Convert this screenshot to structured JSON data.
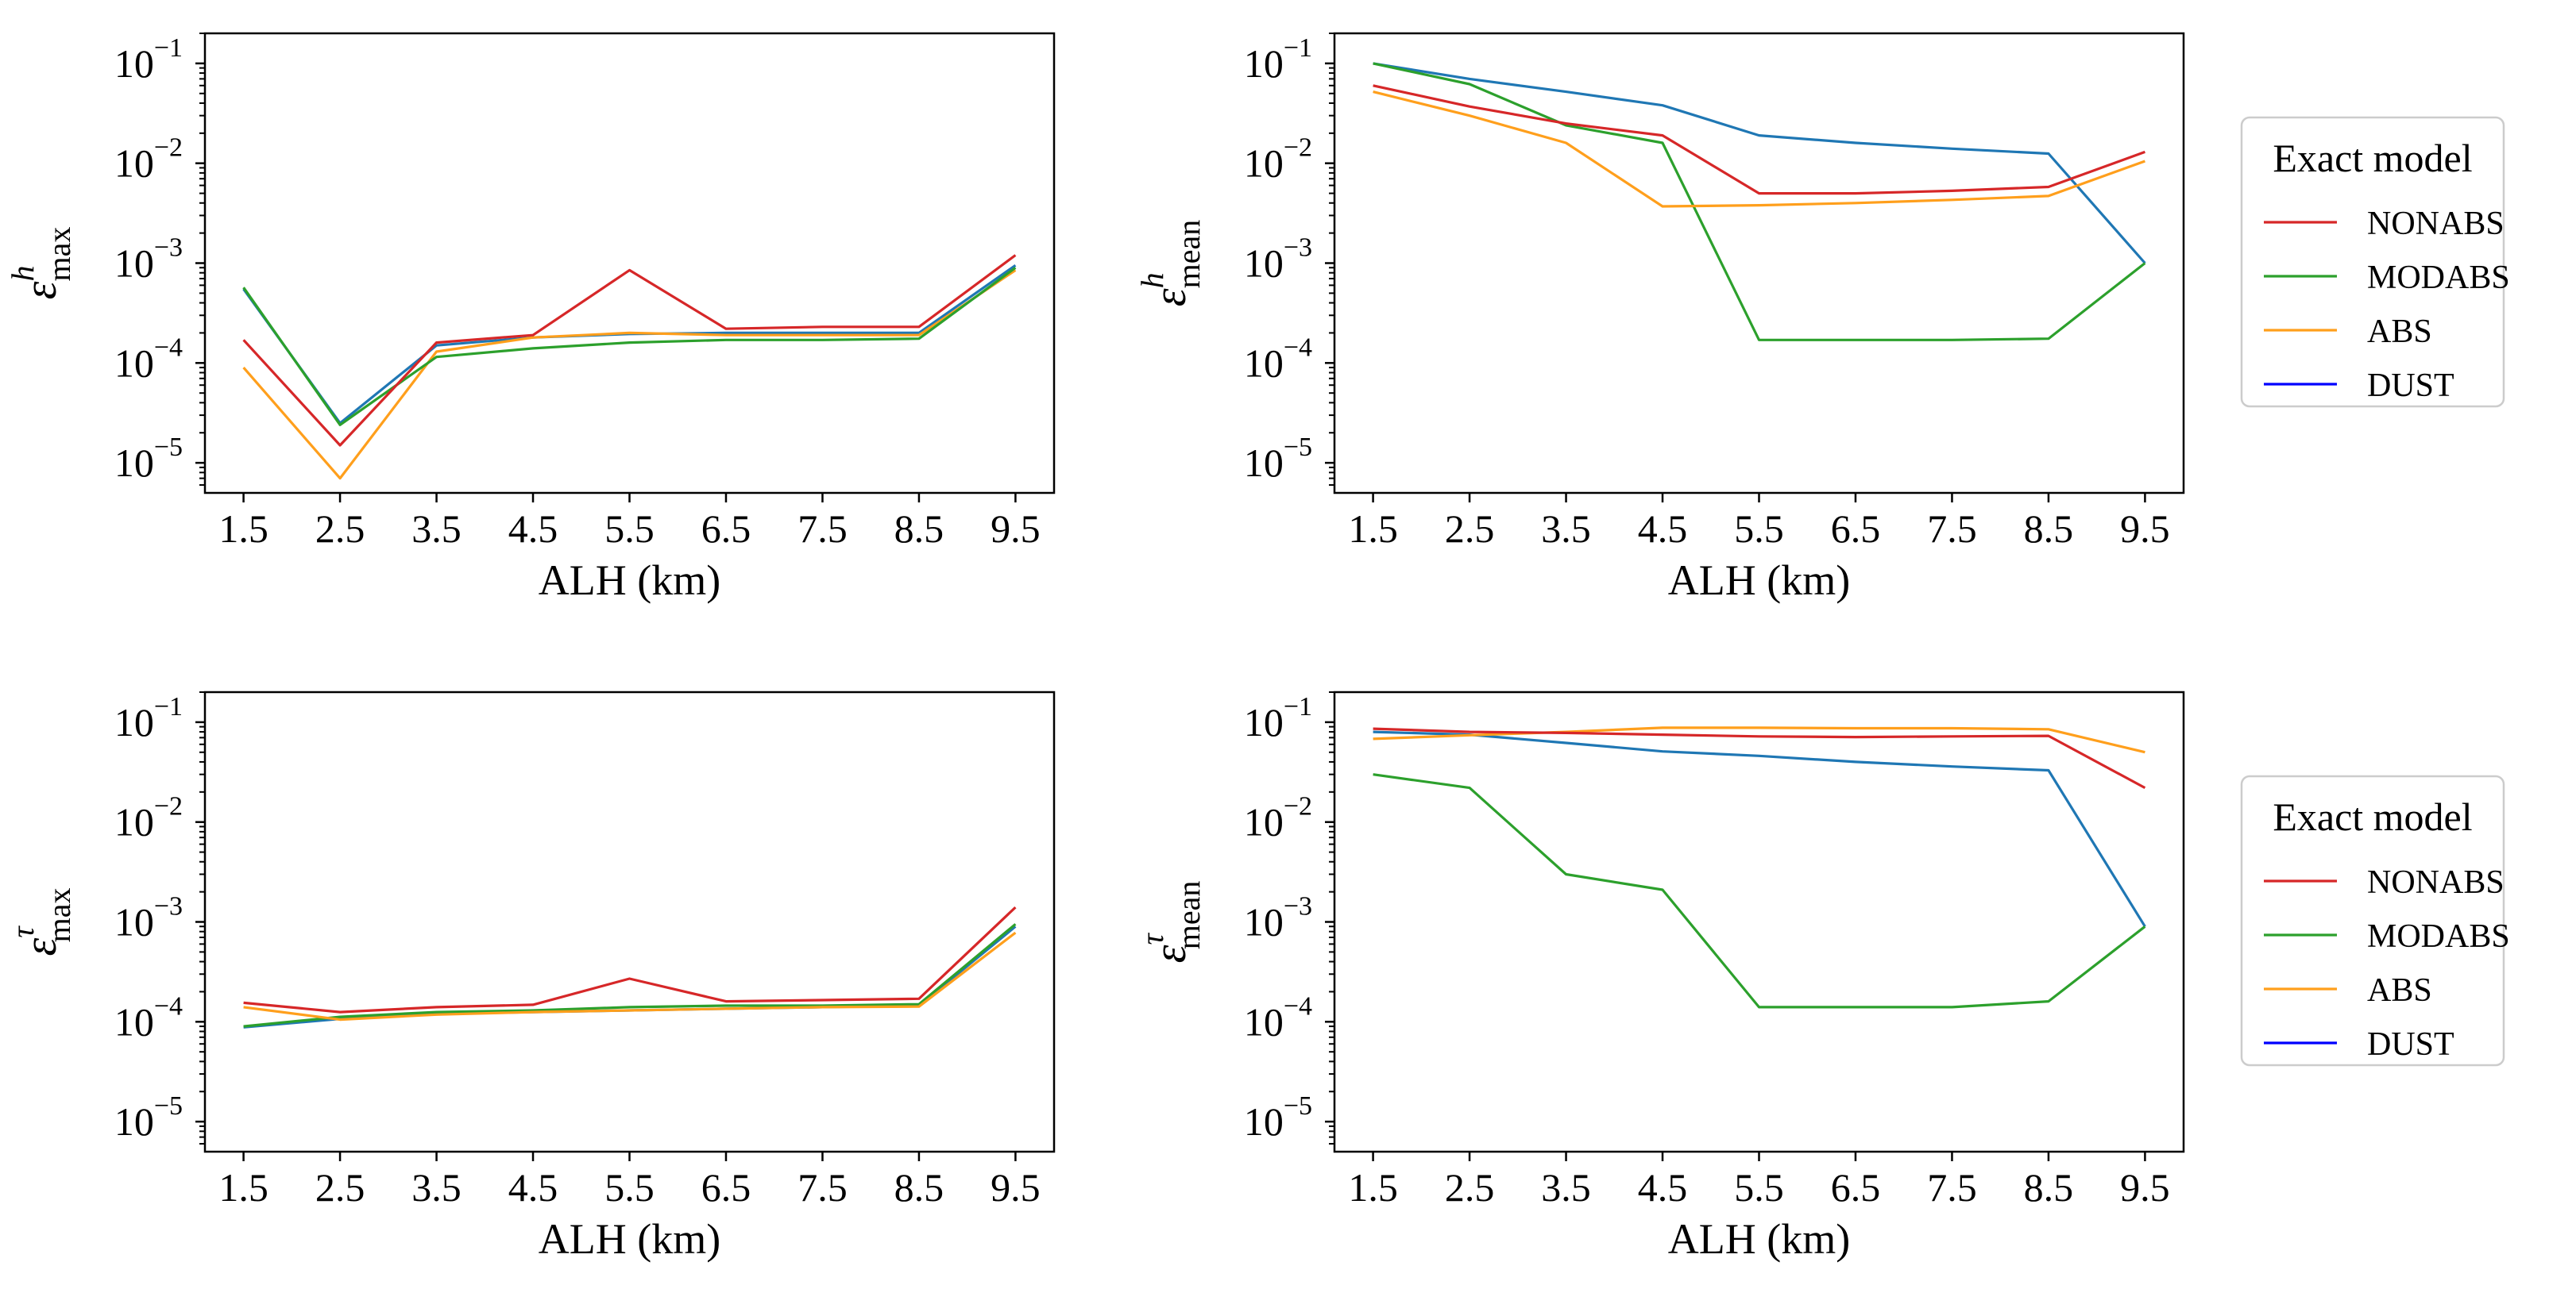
{
  "figure": {
    "colors": {
      "NONABS": "#d62728",
      "MODABS": "#2ca02c",
      "ABS": "#ff9f1c",
      "DUST": "#1f77b4",
      "DUST_legend": "#0000ff"
    }
  },
  "legends": [
    {
      "title": "Exact model",
      "entries": [
        "NONABS",
        "MODABS",
        "ABS",
        "DUST"
      ],
      "placement": "right of top-right panel"
    },
    {
      "title": "Exact model",
      "entries": [
        "NONABS",
        "MODABS",
        "ABS",
        "DUST"
      ],
      "placement": "right of bottom-right panel"
    }
  ],
  "chart_data": [
    {
      "type": "line",
      "panel": "top-left",
      "xlabel": "ALH (km)",
      "ylabel": {
        "base": "ε",
        "sup": "h",
        "sub": "max"
      },
      "x": [
        1.5,
        2.5,
        3.5,
        4.5,
        5.5,
        6.5,
        7.5,
        8.5,
        9.5
      ],
      "xticks": [
        "1.5",
        "2.5",
        "3.5",
        "4.5",
        "5.5",
        "6.5",
        "7.5",
        "8.5",
        "9.5"
      ],
      "yscale": "log",
      "ylim": [
        5e-06,
        0.2
      ],
      "yticks": [
        {
          "base": "10",
          "exp": "−5",
          "v": 1e-05
        },
        {
          "base": "10",
          "exp": "−4",
          "v": 0.0001
        },
        {
          "base": "10",
          "exp": "−3",
          "v": 0.001
        },
        {
          "base": "10",
          "exp": "−2",
          "v": 0.01
        },
        {
          "base": "10",
          "exp": "−1",
          "v": 0.1
        }
      ],
      "series": [
        {
          "name": "DUST",
          "values": [
            0.00055,
            2.5e-05,
            0.00015,
            0.00018,
            0.000195,
            0.0002,
            0.0002,
            0.0002,
            0.00095
          ]
        },
        {
          "name": "ABS",
          "values": [
            9e-05,
            7e-06,
            0.00013,
            0.00018,
            0.0002,
            0.00019,
            0.00019,
            0.00019,
            0.00085
          ]
        },
        {
          "name": "MODABS",
          "values": [
            0.00057,
            2.4e-05,
            0.000115,
            0.00014,
            0.00016,
            0.00017,
            0.00017,
            0.000175,
            0.0009
          ]
        },
        {
          "name": "NONABS",
          "values": [
            0.00017,
            1.5e-05,
            0.00016,
            0.00019,
            0.00085,
            0.00022,
            0.00023,
            0.00023,
            0.0012
          ]
        }
      ]
    },
    {
      "type": "line",
      "panel": "top-right",
      "xlabel": "ALH (km)",
      "ylabel": {
        "base": "ε",
        "sup": "h",
        "sub": "mean"
      },
      "x": [
        1.5,
        2.5,
        3.5,
        4.5,
        5.5,
        6.5,
        7.5,
        8.5,
        9.5
      ],
      "xticks": [
        "1.5",
        "2.5",
        "3.5",
        "4.5",
        "5.5",
        "6.5",
        "7.5",
        "8.5",
        "9.5"
      ],
      "yscale": "log",
      "ylim": [
        5e-06,
        0.2
      ],
      "yticks": [
        {
          "base": "10",
          "exp": "−5",
          "v": 1e-05
        },
        {
          "base": "10",
          "exp": "−4",
          "v": 0.0001
        },
        {
          "base": "10",
          "exp": "−3",
          "v": 0.001
        },
        {
          "base": "10",
          "exp": "−2",
          "v": 0.01
        },
        {
          "base": "10",
          "exp": "−1",
          "v": 0.1
        }
      ],
      "series": [
        {
          "name": "DUST",
          "values": [
            0.1,
            0.07,
            0.052,
            0.038,
            0.019,
            0.016,
            0.014,
            0.0125,
            0.001
          ]
        },
        {
          "name": "MODABS",
          "values": [
            0.1,
            0.062,
            0.024,
            0.016,
            0.00017,
            0.00017,
            0.00017,
            0.000175,
            0.001
          ]
        },
        {
          "name": "NONABS",
          "values": [
            0.06,
            0.037,
            0.025,
            0.019,
            0.005,
            0.005,
            0.0053,
            0.0058,
            0.013
          ]
        },
        {
          "name": "ABS",
          "values": [
            0.052,
            0.03,
            0.016,
            0.0037,
            0.0038,
            0.004,
            0.0043,
            0.0047,
            0.0105
          ]
        }
      ]
    },
    {
      "type": "line",
      "panel": "bottom-left",
      "xlabel": "ALH (km)",
      "ylabel": {
        "base": "ε",
        "sup": "τ",
        "sub": "max"
      },
      "x": [
        1.5,
        2.5,
        3.5,
        4.5,
        5.5,
        6.5,
        7.5,
        8.5,
        9.5
      ],
      "xticks": [
        "1.5",
        "2.5",
        "3.5",
        "4.5",
        "5.5",
        "6.5",
        "7.5",
        "8.5",
        "9.5"
      ],
      "yscale": "log",
      "ylim": [
        5e-06,
        0.2
      ],
      "yticks": [
        {
          "base": "10",
          "exp": "−5",
          "v": 1e-05
        },
        {
          "base": "10",
          "exp": "−4",
          "v": 0.0001
        },
        {
          "base": "10",
          "exp": "−3",
          "v": 0.001
        },
        {
          "base": "10",
          "exp": "−2",
          "v": 0.01
        },
        {
          "base": "10",
          "exp": "−1",
          "v": 0.1
        }
      ],
      "series": [
        {
          "name": "DUST",
          "values": [
            8.8e-05,
            0.000107,
            0.00012,
            0.000125,
            0.00013,
            0.000135,
            0.00014,
            0.000145,
            0.0009
          ]
        },
        {
          "name": "MODABS",
          "values": [
            9e-05,
            0.000112,
            0.000125,
            0.00013,
            0.00014,
            0.000145,
            0.000145,
            0.00015,
            0.00095
          ]
        },
        {
          "name": "ABS",
          "values": [
            0.00014,
            0.000105,
            0.000118,
            0.000125,
            0.00013,
            0.000135,
            0.00014,
            0.000142,
            0.00078
          ]
        },
        {
          "name": "NONABS",
          "values": [
            0.000155,
            0.000125,
            0.00014,
            0.000148,
            0.00027,
            0.00016,
            0.000165,
            0.00017,
            0.0014
          ]
        }
      ]
    },
    {
      "type": "line",
      "panel": "bottom-right",
      "xlabel": "ALH (km)",
      "ylabel": {
        "base": "ε",
        "sup": "τ",
        "sub": "mean"
      },
      "x": [
        1.5,
        2.5,
        3.5,
        4.5,
        5.5,
        6.5,
        7.5,
        8.5,
        9.5
      ],
      "xticks": [
        "1.5",
        "2.5",
        "3.5",
        "4.5",
        "5.5",
        "6.5",
        "7.5",
        "8.5",
        "9.5"
      ],
      "yscale": "log",
      "ylim": [
        5e-06,
        0.2
      ],
      "yticks": [
        {
          "base": "10",
          "exp": "−5",
          "v": 1e-05
        },
        {
          "base": "10",
          "exp": "−4",
          "v": 0.0001
        },
        {
          "base": "10",
          "exp": "−3",
          "v": 0.001
        },
        {
          "base": "10",
          "exp": "−2",
          "v": 0.01
        },
        {
          "base": "10",
          "exp": "−1",
          "v": 0.1
        }
      ],
      "series": [
        {
          "name": "DUST",
          "values": [
            0.08,
            0.075,
            0.062,
            0.051,
            0.046,
            0.04,
            0.036,
            0.033,
            0.0009
          ]
        },
        {
          "name": "ABS",
          "values": [
            0.068,
            0.074,
            0.08,
            0.088,
            0.088,
            0.087,
            0.087,
            0.085,
            0.05
          ]
        },
        {
          "name": "NONABS",
          "values": [
            0.086,
            0.08,
            0.078,
            0.075,
            0.072,
            0.071,
            0.072,
            0.073,
            0.022
          ]
        },
        {
          "name": "MODABS",
          "values": [
            0.03,
            0.022,
            0.003,
            0.0021,
            0.00014,
            0.00014,
            0.00014,
            0.00016,
            0.0009
          ]
        }
      ]
    }
  ]
}
